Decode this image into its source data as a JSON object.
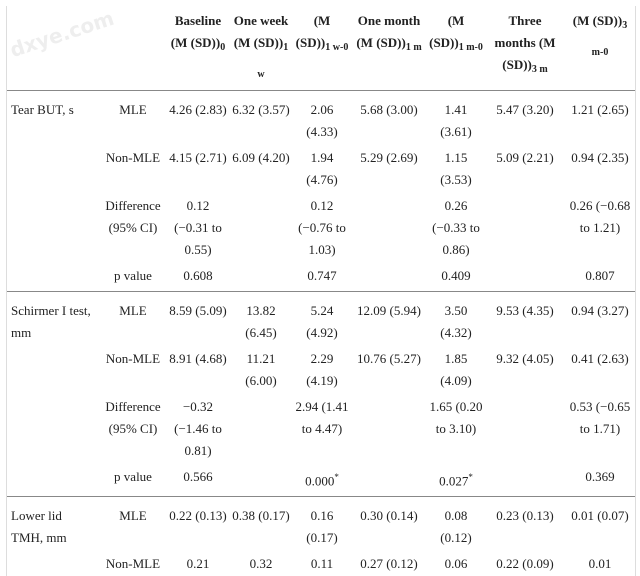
{
  "watermark": "dxye.com",
  "table": {
    "header": [
      {
        "text": "Baseline (M (SD))",
        "sub": "0"
      },
      {
        "text": "One week (M (SD))",
        "sub": "1 w"
      },
      {
        "text": "(M (SD))",
        "sub": "1 w-0"
      },
      {
        "text": "One month (M (SD))",
        "sub": "1 m"
      },
      {
        "text": "(M (SD))",
        "sub": "1 m-0"
      },
      {
        "text": "Three months (M (SD))",
        "sub": "3 m"
      },
      {
        "text": "(M (SD))",
        "sub": "3 m-0"
      }
    ],
    "groups": [
      {
        "label": "Tear BUT, s",
        "rows": [
          {
            "label": "MLE",
            "cells": [
              "4.26 (2.83)",
              "6.32 (3.57)",
              "2.06 (4.33)",
              "5.68 (3.00)",
              "1.41 (3.61)",
              "5.47 (3.20)",
              "1.21 (2.65)"
            ]
          },
          {
            "label": "Non-MLE",
            "cells": [
              "4.15 (2.71)",
              "6.09 (4.20)",
              "1.94 (4.76)",
              "5.29 (2.69)",
              "1.15 (3.53)",
              "5.09 (2.21)",
              "0.94 (2.35)"
            ]
          },
          {
            "label": "Difference (95% CI)",
            "cells": [
              "0.12 (−0.31 to 0.55)",
              null,
              "0.12 (−0.76 to 1.03)",
              null,
              "0.26 (−0.33 to 0.86)",
              null,
              "0.26 (−0.68 to 1.21)"
            ]
          },
          {
            "label": "p value",
            "cells": [
              "0.608",
              null,
              "0.747",
              null,
              "0.409",
              null,
              "0.807"
            ]
          }
        ]
      },
      {
        "label": "Schirmer I test, mm",
        "rows": [
          {
            "label": "MLE",
            "cells": [
              "8.59 (5.09)",
              "13.82 (6.45)",
              "5.24 (4.92)",
              "12.09 (5.94)",
              "3.50 (4.32)",
              "9.53 (4.35)",
              "0.94 (3.27)"
            ]
          },
          {
            "label": "Non-MLE",
            "cells": [
              "8.91 (4.68)",
              "11.21 (6.00)",
              "2.29 (4.19)",
              "10.76 (5.27)",
              "1.85 (4.09)",
              "9.32 (4.05)",
              "0.41 (2.63)"
            ]
          },
          {
            "label": "Difference (95% CI)",
            "cells": [
              "−0.32 (−1.46 to 0.81)",
              null,
              "2.94 (1.41 to 4.47)",
              null,
              "1.65 (0.20 to 3.10)",
              null,
              "0.53 (−0.65 to 1.71)"
            ]
          },
          {
            "label": "p value",
            "cells": [
              "0.566",
              null,
              {
                "text": "0.000",
                "sup": "*"
              },
              null,
              {
                "text": "0.027",
                "sup": "*"
              },
              null,
              "0.369"
            ]
          }
        ]
      },
      {
        "label": "Lower lid TMH, mm",
        "rows": [
          {
            "label": "MLE",
            "cells": [
              "0.22 (0.13)",
              "0.38 (0.17)",
              "0.16 (0.17)",
              "0.30 (0.14)",
              "0.08 (0.12)",
              "0.23 (0.13)",
              "0.01 (0.07)"
            ]
          },
          {
            "label": "Non-MLE",
            "cells": [
              "0.21",
              "0.32",
              "0.11",
              "0.27 (0.12)",
              "0.06",
              "0.22 (0.09)",
              "0.01"
            ]
          }
        ]
      }
    ]
  }
}
